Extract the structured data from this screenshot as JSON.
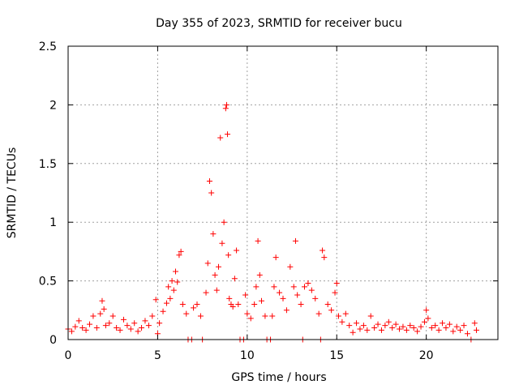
{
  "chart_data": {
    "type": "scatter",
    "title": "Day 355 of 2023, SRMTID for receiver bucu",
    "xlabel": "GPS time / hours",
    "ylabel": "SRMTID / TECUs",
    "xlim": [
      0,
      24
    ],
    "ylim": [
      0,
      2.5
    ],
    "xticks": [
      0,
      5,
      10,
      15,
      20
    ],
    "xtick_labels": [
      "0",
      "5",
      "10",
      "15",
      "20"
    ],
    "yticks": [
      0,
      0.5,
      1,
      1.5,
      2,
      2.5
    ],
    "ytick_labels": [
      "0",
      "0.5",
      "1",
      "1.5",
      "2",
      "2.5"
    ],
    "grid": true,
    "marker": "+",
    "color": "#ff0000",
    "series": [
      {
        "name": "SRMTID",
        "points": [
          [
            0.0,
            0.09
          ],
          [
            0.2,
            0.07
          ],
          [
            0.4,
            0.11
          ],
          [
            0.6,
            0.16
          ],
          [
            0.8,
            0.1
          ],
          [
            1.0,
            0.08
          ],
          [
            1.2,
            0.13
          ],
          [
            1.4,
            0.2
          ],
          [
            1.6,
            0.1
          ],
          [
            1.8,
            0.22
          ],
          [
            1.9,
            0.33
          ],
          [
            2.0,
            0.26
          ],
          [
            2.1,
            0.12
          ],
          [
            2.3,
            0.14
          ],
          [
            2.5,
            0.2
          ],
          [
            2.7,
            0.1
          ],
          [
            2.9,
            0.08
          ],
          [
            3.1,
            0.17
          ],
          [
            3.3,
            0.12
          ],
          [
            3.5,
            0.09
          ],
          [
            3.7,
            0.14
          ],
          [
            3.9,
            0.07
          ],
          [
            4.1,
            0.1
          ],
          [
            4.3,
            0.16
          ],
          [
            4.5,
            0.12
          ],
          [
            4.7,
            0.2
          ],
          [
            4.9,
            0.34
          ],
          [
            5.0,
            0.05
          ],
          [
            5.1,
            0.14
          ],
          [
            5.3,
            0.24
          ],
          [
            5.5,
            0.31
          ],
          [
            5.6,
            0.45
          ],
          [
            5.7,
            0.35
          ],
          [
            5.8,
            0.5
          ],
          [
            5.9,
            0.42
          ],
          [
            6.0,
            0.58
          ],
          [
            6.1,
            0.49
          ],
          [
            6.2,
            0.72
          ],
          [
            6.3,
            0.75
          ],
          [
            6.4,
            0.3
          ],
          [
            6.6,
            0.22
          ],
          [
            6.7,
            0.0
          ],
          [
            6.9,
            0.0
          ],
          [
            7.0,
            0.27
          ],
          [
            7.2,
            0.3
          ],
          [
            7.4,
            0.2
          ],
          [
            7.5,
            0.0
          ],
          [
            7.7,
            0.4
          ],
          [
            7.8,
            0.65
          ],
          [
            7.9,
            1.35
          ],
          [
            8.0,
            1.25
          ],
          [
            8.1,
            0.9
          ],
          [
            8.2,
            0.55
          ],
          [
            8.3,
            0.42
          ],
          [
            8.4,
            0.62
          ],
          [
            8.5,
            1.72
          ],
          [
            8.6,
            0.82
          ],
          [
            8.7,
            1.0
          ],
          [
            8.8,
            1.97
          ],
          [
            8.85,
            2.0
          ],
          [
            8.9,
            1.75
          ],
          [
            8.95,
            0.72
          ],
          [
            9.0,
            0.35
          ],
          [
            9.1,
            0.3
          ],
          [
            9.2,
            0.28
          ],
          [
            9.3,
            0.52
          ],
          [
            9.4,
            0.76
          ],
          [
            9.5,
            0.3
          ],
          [
            9.6,
            0.0
          ],
          [
            9.8,
            0.0
          ],
          [
            9.9,
            0.38
          ],
          [
            10.0,
            0.22
          ],
          [
            10.2,
            0.18
          ],
          [
            10.4,
            0.3
          ],
          [
            10.5,
            0.45
          ],
          [
            10.6,
            0.84
          ],
          [
            10.7,
            0.55
          ],
          [
            10.8,
            0.33
          ],
          [
            11.0,
            0.2
          ],
          [
            11.1,
            0.0
          ],
          [
            11.3,
            0.0
          ],
          [
            11.4,
            0.2
          ],
          [
            11.5,
            0.45
          ],
          [
            11.6,
            0.7
          ],
          [
            11.8,
            0.4
          ],
          [
            12.0,
            0.35
          ],
          [
            12.2,
            0.25
          ],
          [
            12.4,
            0.62
          ],
          [
            12.6,
            0.45
          ],
          [
            12.7,
            0.84
          ],
          [
            12.8,
            0.38
          ],
          [
            13.0,
            0.3
          ],
          [
            13.1,
            0.0
          ],
          [
            13.2,
            0.45
          ],
          [
            13.4,
            0.48
          ],
          [
            13.6,
            0.42
          ],
          [
            13.8,
            0.35
          ],
          [
            14.0,
            0.22
          ],
          [
            14.1,
            0.0
          ],
          [
            14.2,
            0.76
          ],
          [
            14.3,
            0.7
          ],
          [
            14.5,
            0.3
          ],
          [
            14.7,
            0.25
          ],
          [
            14.9,
            0.4
          ],
          [
            15.0,
            0.48
          ],
          [
            15.1,
            0.2
          ],
          [
            15.3,
            0.15
          ],
          [
            15.5,
            0.22
          ],
          [
            15.7,
            0.12
          ],
          [
            15.9,
            0.06
          ],
          [
            16.1,
            0.14
          ],
          [
            16.3,
            0.09
          ],
          [
            16.5,
            0.12
          ],
          [
            16.7,
            0.08
          ],
          [
            16.9,
            0.2
          ],
          [
            17.1,
            0.1
          ],
          [
            17.3,
            0.13
          ],
          [
            17.5,
            0.08
          ],
          [
            17.7,
            0.12
          ],
          [
            17.9,
            0.15
          ],
          [
            18.1,
            0.1
          ],
          [
            18.3,
            0.13
          ],
          [
            18.5,
            0.09
          ],
          [
            18.7,
            0.11
          ],
          [
            18.9,
            0.08
          ],
          [
            19.1,
            0.12
          ],
          [
            19.3,
            0.1
          ],
          [
            19.5,
            0.07
          ],
          [
            19.7,
            0.11
          ],
          [
            19.9,
            0.15
          ],
          [
            20.0,
            0.25
          ],
          [
            20.1,
            0.18
          ],
          [
            20.3,
            0.1
          ],
          [
            20.5,
            0.12
          ],
          [
            20.7,
            0.08
          ],
          [
            20.9,
            0.14
          ],
          [
            21.1,
            0.1
          ],
          [
            21.3,
            0.13
          ],
          [
            21.5,
            0.07
          ],
          [
            21.7,
            0.11
          ],
          [
            21.9,
            0.08
          ],
          [
            22.1,
            0.12
          ],
          [
            22.3,
            0.05
          ],
          [
            22.5,
            0.0
          ],
          [
            22.7,
            0.14
          ],
          [
            22.8,
            0.08
          ]
        ]
      }
    ]
  }
}
